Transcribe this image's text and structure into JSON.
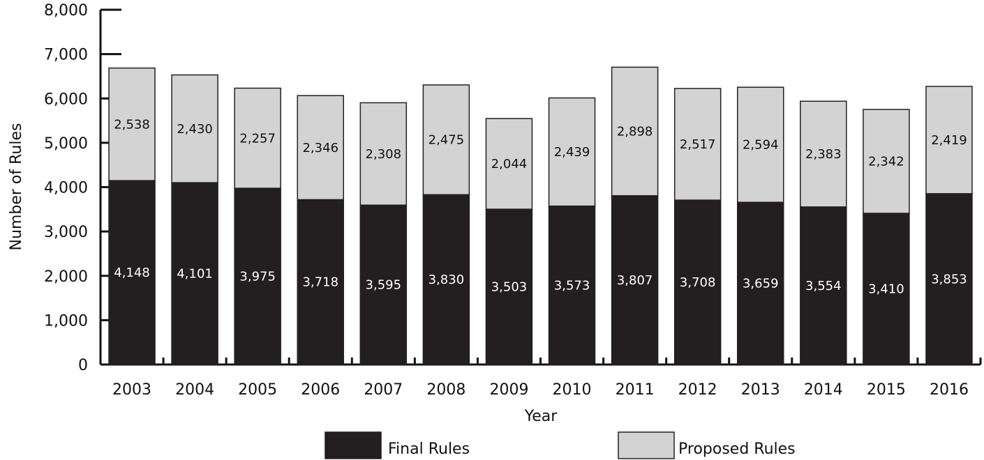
{
  "chart_data": {
    "type": "bar",
    "stacked": true,
    "title": "",
    "xlabel": "Year",
    "ylabel": "Number of Rules",
    "ylim": [
      0,
      8000
    ],
    "yticks": [
      "0",
      "1,000",
      "2,000",
      "3,000",
      "4,000",
      "5,000",
      "6,000",
      "7,000",
      "8,000"
    ],
    "categories": [
      "2003",
      "2004",
      "2005",
      "2006",
      "2007",
      "2008",
      "2009",
      "2010",
      "2011",
      "2012",
      "2013",
      "2014",
      "2015",
      "2016"
    ],
    "series": [
      {
        "name": "Final Rules",
        "color": "#231f20",
        "label_color": "#ffffff",
        "values": [
          4148,
          4101,
          3975,
          3718,
          3595,
          3830,
          3503,
          3573,
          3807,
          3708,
          3659,
          3554,
          3410,
          3853
        ],
        "labels": [
          "4,148",
          "4,101",
          "3,975",
          "3,718",
          "3,595",
          "3,830",
          "3,503",
          "3,573",
          "3,807",
          "3,708",
          "3,659",
          "3,554",
          "3,410",
          "3,853"
        ]
      },
      {
        "name": "Proposed Rules",
        "color": "#d3d3d3",
        "label_color": "#111111",
        "values": [
          2538,
          2430,
          2257,
          2346,
          2308,
          2475,
          2044,
          2439,
          2898,
          2517,
          2594,
          2383,
          2342,
          2419
        ],
        "labels": [
          "2,538",
          "2,430",
          "2,257",
          "2,346",
          "2,308",
          "2,475",
          "2,044",
          "2,439",
          "2,898",
          "2,517",
          "2,594",
          "2,383",
          "2,342",
          "2,419"
        ]
      }
    ],
    "legend": {
      "position": "bottom"
    },
    "grid": false
  }
}
